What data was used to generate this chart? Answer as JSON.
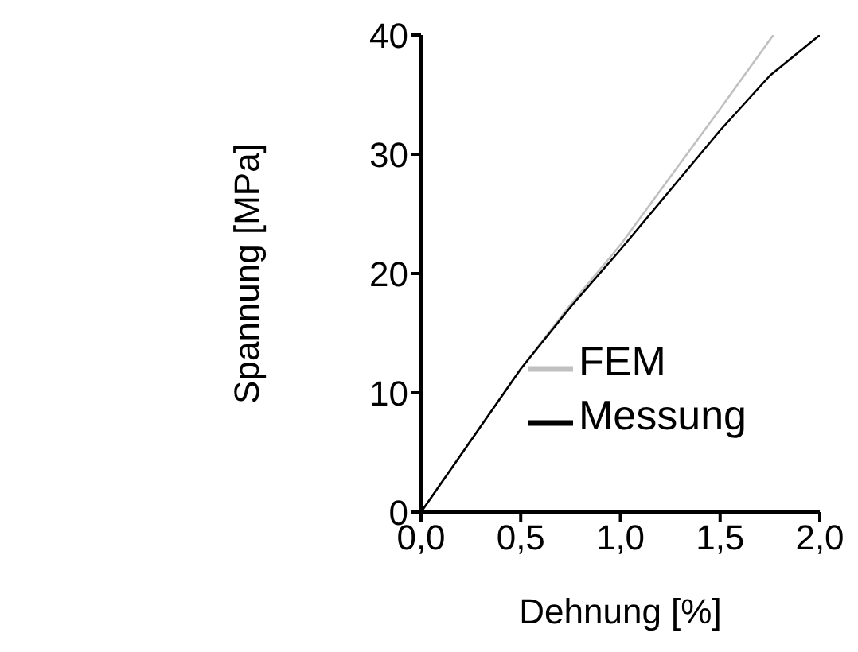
{
  "chart_data": {
    "type": "line",
    "xlabel": "Dehnung [%]",
    "ylabel": "Spannung [MPa]",
    "series": [
      {
        "name": "FEM",
        "color": "#c0c0c0",
        "x": [
          0,
          0.25,
          0.5,
          0.75,
          1.0,
          1.25,
          1.5,
          1.767
        ],
        "values": [
          0,
          6.0,
          12.0,
          17.4,
          22.4,
          28.1,
          33.8,
          40
        ]
      },
      {
        "name": "Messung",
        "color": "#000000",
        "x": [
          0,
          0.25,
          0.5,
          0.75,
          1.0,
          1.25,
          1.5,
          1.75,
          2.0
        ],
        "values": [
          0,
          6.0,
          12.0,
          17.2,
          22.0,
          27.0,
          32.0,
          36.6,
          40
        ]
      }
    ],
    "xlim": [
      0,
      2
    ],
    "xticks": [
      {
        "value": 0,
        "label": "0,0"
      },
      {
        "value": 0.5,
        "label": "0,5"
      },
      {
        "value": 1,
        "label": "1,0"
      },
      {
        "value": 1.5,
        "label": "1,5"
      },
      {
        "value": 2,
        "label": "2,0"
      }
    ],
    "ylim": [
      0,
      40
    ],
    "yticks": [
      0,
      10,
      20,
      30,
      40
    ],
    "grid": false,
    "legend": "bottom right",
    "marker": "none",
    "line_style": "solid"
  }
}
